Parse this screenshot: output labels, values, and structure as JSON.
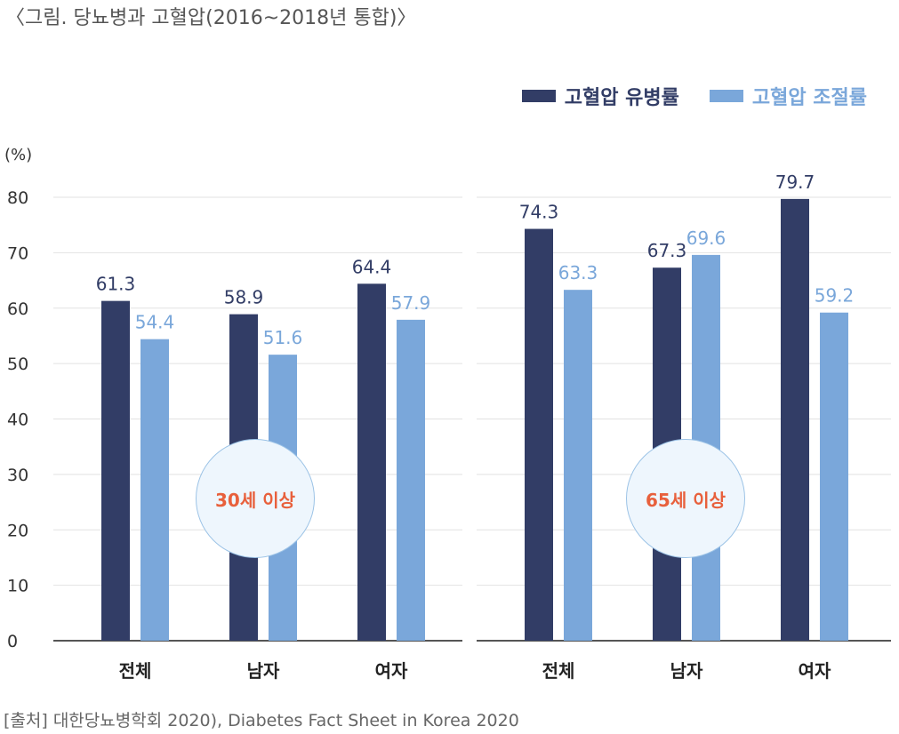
{
  "title": "〈그림. 당뇨병과 고혈압(2016~2018년 통합)〉",
  "source": "[출처] 대한당뇨병학회 2020), Diabetes Fact Sheet in Korea 2020",
  "colors": {
    "prevalence": "#323d66",
    "control": "#7aa7da",
    "grid": "#e2e2e2",
    "axis": "#555555",
    "panel_label": "#e8603c"
  },
  "chart_data": {
    "type": "bar",
    "ylabel": "(%)",
    "ylim": [
      0,
      80
    ],
    "yticks": [
      0,
      10,
      20,
      30,
      40,
      50,
      60,
      70,
      80
    ],
    "grid": true,
    "legend_position": "top-right",
    "legend": [
      "고혈압 유병률",
      "고혈압 조절률"
    ],
    "panels": [
      {
        "label": "30세 이상",
        "categories": [
          "전체",
          "남자",
          "여자"
        ],
        "series": [
          {
            "name": "고혈압 유병률",
            "values": [
              61.3,
              58.9,
              64.4
            ]
          },
          {
            "name": "고혈압 조절률",
            "values": [
              54.4,
              51.6,
              57.9
            ]
          }
        ]
      },
      {
        "label": "65세 이상",
        "categories": [
          "전체",
          "남자",
          "여자"
        ],
        "series": [
          {
            "name": "고혈압 유병률",
            "values": [
              74.3,
              67.3,
              79.7
            ]
          },
          {
            "name": "고혈압 조절률",
            "values": [
              63.3,
              69.6,
              59.2
            ]
          }
        ]
      }
    ]
  }
}
